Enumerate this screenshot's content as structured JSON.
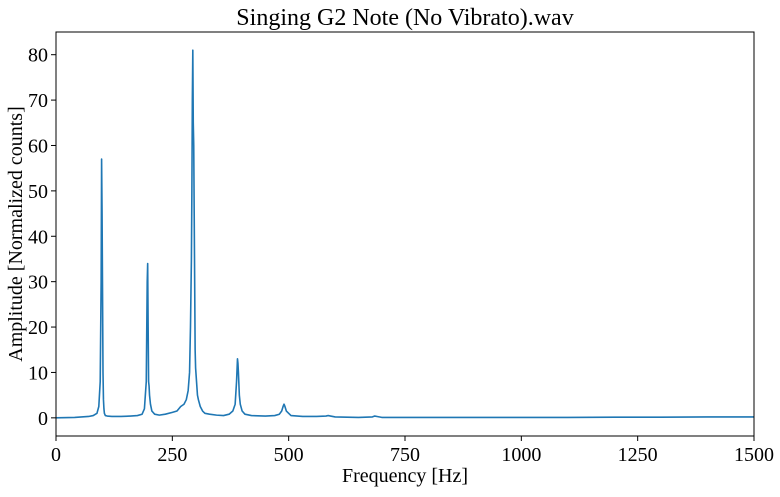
{
  "chart_data": {
    "type": "line",
    "title": "Singing G2 Note (No Vibrato).wav",
    "xlabel": "Frequency [Hz]",
    "ylabel": "Amplitude [Normalized counts]",
    "xlim": [
      0,
      1500
    ],
    "ylim": [
      -4,
      85
    ],
    "xticks": [
      0,
      250,
      500,
      750,
      1000,
      1250,
      1500
    ],
    "yticks": [
      0,
      10,
      20,
      30,
      40,
      50,
      60,
      70,
      80
    ],
    "xtick_labels": [
      "0",
      "250",
      "500",
      "750",
      "1000",
      "1250",
      "1500"
    ],
    "ytick_labels": [
      "0",
      "10",
      "20",
      "30",
      "40",
      "50",
      "60",
      "70",
      "80"
    ],
    "grid": false,
    "legend": false,
    "series": [
      {
        "color": "#1f77b4",
        "x": [
          0,
          40,
          70,
          80,
          88,
          92,
          95,
          97,
          98,
          99,
          100,
          101,
          102,
          103,
          104,
          106,
          110,
          120,
          140,
          160,
          175,
          185,
          190,
          194,
          196,
          197,
          198,
          199,
          200,
          201,
          203,
          206,
          212,
          222,
          235,
          250,
          260,
          268,
          275,
          280,
          284,
          287,
          289,
          291,
          292,
          293,
          294,
          295,
          296,
          297,
          298,
          299,
          300,
          302,
          304,
          306,
          310,
          315,
          320,
          330,
          345,
          360,
          372,
          380,
          385,
          388,
          390,
          391,
          392,
          394,
          396,
          400,
          406,
          420,
          450,
          470,
          480,
          485,
          488,
          490,
          492,
          495,
          505,
          530,
          560,
          580,
          585,
          590,
          600,
          650,
          680,
          685,
          690,
          700,
          800,
          900,
          1000,
          1100,
          1200,
          1300,
          1400,
          1500
        ],
        "y": [
          0,
          0.1,
          0.3,
          0.5,
          1.0,
          2.5,
          8,
          30,
          57,
          45,
          28,
          10,
          4,
          2,
          1,
          0.5,
          0.4,
          0.3,
          0.3,
          0.4,
          0.5,
          0.8,
          2,
          8,
          30,
          34,
          20,
          8,
          7,
          5,
          3,
          1.5,
          0.8,
          0.6,
          0.8,
          1.2,
          1.5,
          2.5,
          3.0,
          4.0,
          6,
          10,
          20,
          35,
          50,
          70,
          81,
          65,
          60,
          45,
          30,
          15,
          11,
          8,
          5,
          4,
          2.5,
          1.5,
          1.0,
          0.8,
          0.6,
          0.5,
          0.8,
          1.5,
          3,
          8,
          13,
          12,
          10,
          5,
          3,
          1.5,
          0.8,
          0.5,
          0.4,
          0.5,
          0.8,
          1.5,
          2.5,
          3,
          2.5,
          1.5,
          0.5,
          0.3,
          0.3,
          0.4,
          0.5,
          0.4,
          0.2,
          0.1,
          0.2,
          0.4,
          0.3,
          0.1,
          0.1,
          0.1,
          0.1,
          0.1,
          0.15,
          0.15,
          0.2,
          0.2
        ]
      }
    ]
  }
}
